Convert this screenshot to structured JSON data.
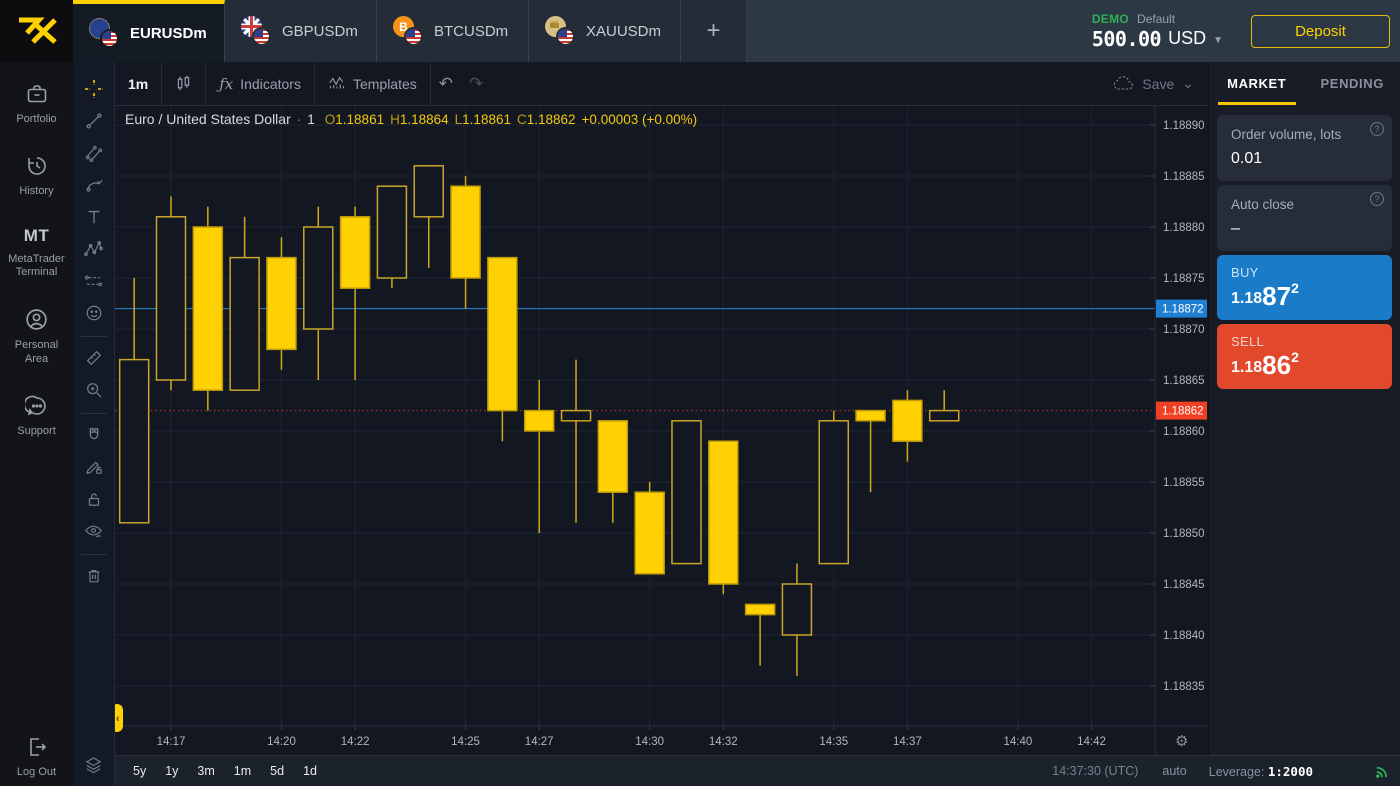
{
  "topbar": {
    "tabs": [
      {
        "label": "EURUSDm",
        "flag": "eur"
      },
      {
        "label": "GBPUSDm",
        "flag": "gbp"
      },
      {
        "label": "BTCUSDm",
        "flag": "btc"
      },
      {
        "label": "XAUUSDm",
        "flag": "xau"
      }
    ],
    "add_tab_label": "+",
    "account": {
      "mode": "DEMO",
      "profile": "Default",
      "balance": "500.00",
      "currency": "USD"
    },
    "deposit_label": "Deposit",
    "btc_symbol": "B"
  },
  "leftnav": {
    "items": [
      {
        "label": "Portfolio"
      },
      {
        "label": "History"
      },
      {
        "label": "MetaTrader Terminal",
        "icon_text": "MT"
      },
      {
        "label": "Personal Area"
      },
      {
        "label": "Support"
      }
    ],
    "logout_label": "Log Out"
  },
  "chart_toolbar": {
    "timeframe": "1m",
    "indicators_fx": "ƒx",
    "indicators_label": "Indicators",
    "templates_label": "Templates",
    "undo_glyph": "↶",
    "redo_glyph": "↷",
    "save_label": "Save",
    "save_caret": "⌄"
  },
  "legend": {
    "title": "Euro / United States Dollar",
    "separator": "·",
    "interval": "1",
    "o_label": "O",
    "o": "1.18861",
    "h_label": "H",
    "h": "1.18864",
    "l_label": "L",
    "l": "1.18861",
    "c_label": "C",
    "c": "1.18862",
    "change": "+0.00003 (+0.00%)"
  },
  "order_panel": {
    "market_tab": "MARKET",
    "pending_tab": "PENDING",
    "volume_label": "Order volume, lots",
    "volume_value": "0.01",
    "volume_help": "?",
    "autoclose_label": "Auto close",
    "autoclose_value": "–",
    "autoclose_help": "?",
    "buy_label": "BUY",
    "buy_price": {
      "base": "1.18",
      "big": "87",
      "sup": "2"
    },
    "sell_label": "SELL",
    "sell_price": {
      "base": "1.18",
      "big": "86",
      "sup": "2"
    }
  },
  "bottombar": {
    "ranges": [
      {
        "label": "5y"
      },
      {
        "label": "1y"
      },
      {
        "label": "3m"
      },
      {
        "label": "1m"
      },
      {
        "label": "5d"
      },
      {
        "label": "1d"
      }
    ],
    "clock": "14:37:30 (UTC)",
    "auto_label": "auto",
    "leverage_label": "Leverage:",
    "leverage_value": "1:2000"
  },
  "chart_data": {
    "type": "candlestick",
    "title": "Euro / United States Dollar",
    "interval_minutes": 1,
    "background": "#131722",
    "grid_color": "#1e2531",
    "candle_color": "#ffd102",
    "candle_solid_stroke": "#bf9c08",
    "candle_hollow_stroke": "#c7a62a",
    "buy_line": {
      "price": 1.18872,
      "label": "1.18872",
      "color": "#1f7fd2",
      "line_color": "#2b87d3"
    },
    "sell_line": {
      "price": 1.18862,
      "label": "1.18862",
      "color": "#ef4023",
      "line_color": "#9a3122"
    },
    "y_axis": {
      "top": 1.1889,
      "step": 5e-05,
      "grid_on": true,
      "ticks": [
        "1.18890",
        "1.18885",
        "1.18880",
        "1.18875",
        "1.18870",
        "1.18865",
        "1.18860",
        "1.18855",
        "1.18850",
        "1.18845",
        "1.18840",
        "1.18835"
      ]
    },
    "x_axis": {
      "labels": [
        "14:17",
        "14:20",
        "14:22",
        "14:25",
        "14:27",
        "14:30",
        "14:32",
        "14:35",
        "14:37",
        "14:40",
        "14:42"
      ]
    },
    "settings_gear_glyph": "⚙",
    "collapse_handle_glyph": "‹",
    "candles": [
      {
        "t": "14:16",
        "o": 1.18851,
        "h": 1.18875,
        "l": 1.18851,
        "c": 1.18867
      },
      {
        "t": "14:17",
        "o": 1.18865,
        "h": 1.18883,
        "l": 1.18864,
        "c": 1.18881
      },
      {
        "t": "14:18",
        "o": 1.1888,
        "h": 1.18882,
        "l": 1.18862,
        "c": 1.18864
      },
      {
        "t": "14:19",
        "o": 1.18864,
        "h": 1.18881,
        "l": 1.18864,
        "c": 1.18877
      },
      {
        "t": "14:20",
        "o": 1.18877,
        "h": 1.18879,
        "l": 1.18866,
        "c": 1.18868
      },
      {
        "t": "14:21",
        "o": 1.1887,
        "h": 1.18882,
        "l": 1.18865,
        "c": 1.1888
      },
      {
        "t": "14:22",
        "o": 1.18881,
        "h": 1.18882,
        "l": 1.18865,
        "c": 1.18874
      },
      {
        "t": "14:23",
        "o": 1.18875,
        "h": 1.18884,
        "l": 1.18874,
        "c": 1.18884
      },
      {
        "t": "14:24",
        "o": 1.18881,
        "h": 1.18886,
        "l": 1.18876,
        "c": 1.18886
      },
      {
        "t": "14:25",
        "o": 1.18884,
        "h": 1.18885,
        "l": 1.18872,
        "c": 1.18875
      },
      {
        "t": "14:26",
        "o": 1.18877,
        "h": 1.18877,
        "l": 1.18859,
        "c": 1.18862
      },
      {
        "t": "14:27",
        "o": 1.18862,
        "h": 1.18865,
        "l": 1.1885,
        "c": 1.1886
      },
      {
        "t": "14:28",
        "o": 1.18861,
        "h": 1.18867,
        "l": 1.18851,
        "c": 1.18862
      },
      {
        "t": "14:29",
        "o": 1.18861,
        "h": 1.18861,
        "l": 1.18851,
        "c": 1.18854
      },
      {
        "t": "14:30",
        "o": 1.18854,
        "h": 1.18855,
        "l": 1.18846,
        "c": 1.18846
      },
      {
        "t": "14:31",
        "o": 1.18847,
        "h": 1.18861,
        "l": 1.18847,
        "c": 1.18861
      },
      {
        "t": "14:32",
        "o": 1.18859,
        "h": 1.18859,
        "l": 1.18844,
        "c": 1.18845
      },
      {
        "t": "14:33",
        "o": 1.18843,
        "h": 1.18843,
        "l": 1.18837,
        "c": 1.18842
      },
      {
        "t": "14:34",
        "o": 1.1884,
        "h": 1.18847,
        "l": 1.18836,
        "c": 1.18845
      },
      {
        "t": "14:35",
        "o": 1.18847,
        "h": 1.18862,
        "l": 1.18847,
        "c": 1.18861
      },
      {
        "t": "14:36",
        "o": 1.18862,
        "h": 1.18862,
        "l": 1.18854,
        "c": 1.18861
      },
      {
        "t": "14:37",
        "o": 1.18863,
        "h": 1.18864,
        "l": 1.18857,
        "c": 1.18859
      },
      {
        "t": "14:38",
        "o": 1.18861,
        "h": 1.18864,
        "l": 1.18861,
        "c": 1.18862
      }
    ]
  }
}
